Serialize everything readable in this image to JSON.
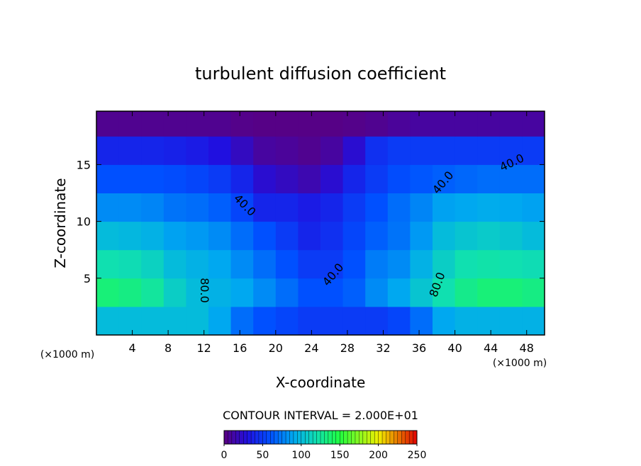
{
  "chart_data": {
    "type": "heatmap",
    "title": "turbulent diffusion coefficient",
    "x_label": "X-coordinate",
    "y_label": "Z-coordinate",
    "x_unit": "(×1000 m)",
    "x_unit_right": "(×1000 m)",
    "subtitle": "CONTOUR INTERVAL = 2.000E+01",
    "xlim": [
      0,
      50
    ],
    "ylim": [
      0,
      19.7
    ],
    "xticks": [
      4,
      8,
      12,
      16,
      20,
      24,
      28,
      32,
      36,
      40,
      44,
      48
    ],
    "yticks": [
      5,
      10,
      15
    ],
    "x": [
      1.25,
      3.75,
      6.25,
      8.75,
      11.25,
      13.75,
      16.25,
      18.75,
      21.25,
      23.75,
      26.25,
      28.75,
      31.25,
      33.75,
      36.25,
      38.75,
      41.25,
      43.75,
      46.25,
      48.75
    ],
    "y": [
      1.25,
      3.75,
      6.25,
      8.75,
      11.25,
      13.75,
      16.25,
      18.75
    ],
    "z": [
      [
        100,
        100,
        100,
        100,
        100,
        90,
        70,
        60,
        55,
        50,
        50,
        50,
        50,
        55,
        70,
        90,
        95,
        95,
        95,
        95
      ],
      [
        135,
        132,
        125,
        110,
        100,
        95,
        90,
        80,
        70,
        60,
        60,
        65,
        80,
        90,
        105,
        120,
        130,
        135,
        135,
        132
      ],
      [
        120,
        118,
        112,
        100,
        95,
        90,
        80,
        70,
        60,
        50,
        50,
        60,
        75,
        80,
        95,
        110,
        120,
        122,
        120,
        118
      ],
      [
        100,
        98,
        95,
        88,
        85,
        80,
        70,
        60,
        50,
        40,
        45,
        55,
        65,
        72,
        85,
        100,
        105,
        108,
        105,
        100
      ],
      [
        80,
        80,
        78,
        72,
        70,
        65,
        55,
        40,
        40,
        35,
        40,
        50,
        60,
        70,
        78,
        88,
        90,
        92,
        90,
        88
      ],
      [
        60,
        60,
        60,
        58,
        55,
        50,
        40,
        25,
        20,
        15,
        25,
        40,
        50,
        58,
        62,
        65,
        68,
        70,
        70,
        70
      ],
      [
        40,
        40,
        40,
        38,
        35,
        30,
        20,
        10,
        8,
        5,
        10,
        25,
        45,
        50,
        50,
        50,
        50,
        50,
        50,
        50
      ],
      [
        5,
        5,
        5,
        5,
        5,
        5,
        3,
        2,
        2,
        2,
        2,
        3,
        5,
        8,
        10,
        10,
        10,
        10,
        10,
        10
      ]
    ],
    "colorscale": [
      [
        0,
        "#5a0080"
      ],
      [
        30,
        "#2010e0"
      ],
      [
        60,
        "#0050ff"
      ],
      [
        90,
        "#00a8f0"
      ],
      [
        120,
        "#10e0b0"
      ],
      [
        150,
        "#20ff40"
      ],
      [
        200,
        "#f0f000"
      ],
      [
        250,
        "#e00000"
      ]
    ],
    "colorbar": {
      "lim": [
        0,
        250
      ],
      "ticks": [
        0,
        50,
        100,
        150,
        200,
        250
      ]
    },
    "annotations": [
      "40.0",
      "80.0",
      "40.0",
      "40.0",
      "40.0",
      "80.0"
    ]
  }
}
